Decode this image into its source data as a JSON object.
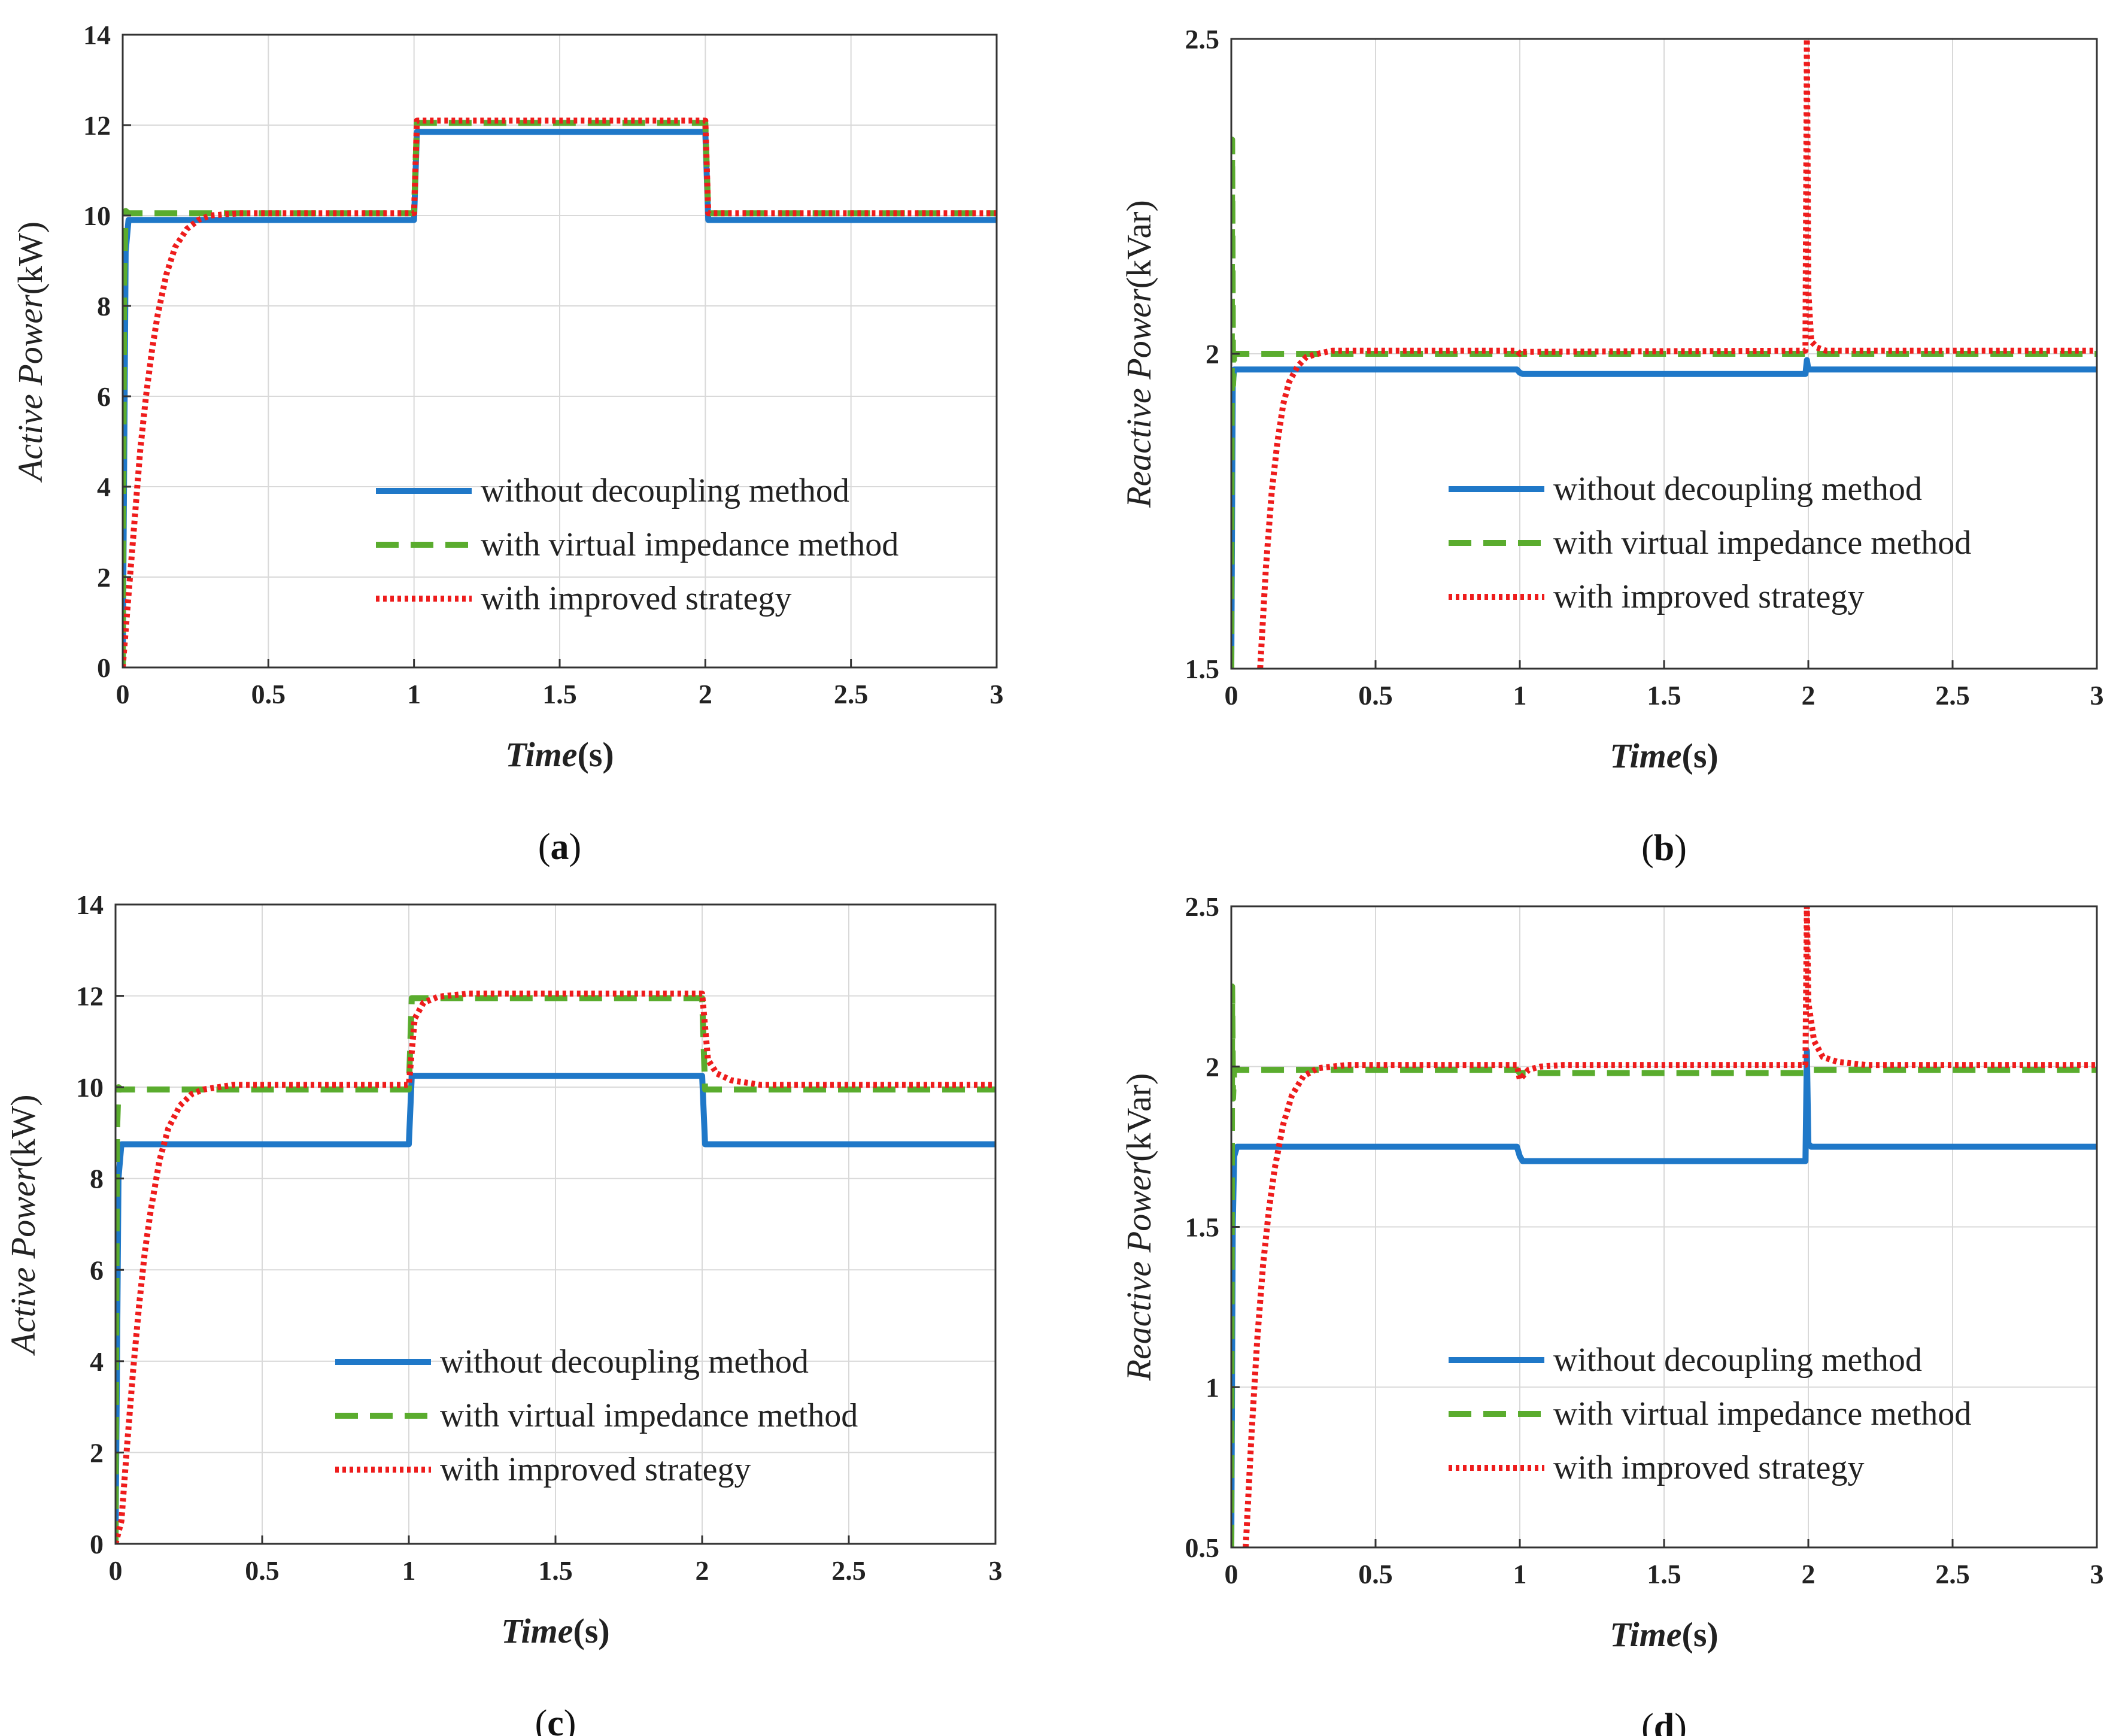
{
  "colors": {
    "without": "#1f78c8",
    "virtual": "#5aac2e",
    "improved": "#ee1c1c",
    "grid": "#d9d9d9",
    "axis": "#333333"
  },
  "chart_data": [
    {
      "id": "a",
      "type": "line",
      "panel_label_open": "(",
      "panel_label": "a",
      "panel_label_close": ")",
      "ylabel_italic": "Active Power",
      "ylabel_unit": "(kW)",
      "xlabel_italic": "Time",
      "xlabel_unit": "(s)",
      "xlim": [
        0,
        3
      ],
      "ylim": [
        0,
        14
      ],
      "xticks": [
        "0",
        "0.5",
        "1",
        "1.5",
        "2",
        "2.5",
        "3"
      ],
      "yticks": [
        "0",
        "2",
        "4",
        "6",
        "8",
        "10",
        "12",
        "14"
      ],
      "grid": true,
      "legend_position": "bottom-right",
      "series": [
        {
          "name": "without decoupling method",
          "style": "solid",
          "color_key": "without",
          "x": [
            0,
            0.01,
            0.02,
            0.99,
            1.0,
            1.01,
            1.99,
            2.0,
            2.01,
            3.0
          ],
          "y": [
            0,
            9.2,
            9.9,
            9.9,
            9.9,
            11.85,
            11.85,
            11.85,
            9.9,
            9.9
          ]
        },
        {
          "name": "with virtual impedance method",
          "style": "dashed",
          "color_key": "virtual",
          "x": [
            0,
            0.005,
            0.01,
            0.02,
            0.99,
            1.0,
            1.01,
            1.99,
            2.0,
            2.01,
            3.0
          ],
          "y": [
            0,
            8.5,
            10.1,
            10.05,
            10.05,
            10.05,
            12.05,
            12.05,
            12.05,
            10.05,
            10.05
          ]
        },
        {
          "name": "with improved strategy",
          "style": "dotted",
          "color_key": "improved",
          "x": [
            0,
            0.02,
            0.04,
            0.06,
            0.08,
            0.1,
            0.12,
            0.15,
            0.18,
            0.22,
            0.26,
            0.3,
            0.4,
            0.99,
            1.0,
            1.01,
            1.99,
            2.0,
            2.01,
            3.0
          ],
          "y": [
            0,
            1.6,
            3.2,
            4.8,
            6.0,
            7.0,
            7.8,
            8.7,
            9.3,
            9.7,
            9.9,
            10.0,
            10.05,
            10.05,
            10.05,
            12.1,
            12.1,
            12.1,
            10.05,
            10.05
          ]
        }
      ]
    },
    {
      "id": "b",
      "type": "line",
      "panel_label_open": "(",
      "panel_label": "b",
      "panel_label_close": ")",
      "ylabel_italic": "Reactive Power",
      "ylabel_unit": "(kVar)",
      "xlabel_italic": "Time",
      "xlabel_unit": "(s)",
      "xlim": [
        0,
        3
      ],
      "ylim": [
        1.5,
        2.5
      ],
      "xticks": [
        "0",
        "0.5",
        "1",
        "1.5",
        "2",
        "2.5",
        "3"
      ],
      "yticks": [
        "1.5",
        "2",
        "2.5"
      ],
      "grid": true,
      "legend_position": "bottom-right",
      "series": [
        {
          "name": "without decoupling method",
          "style": "solid",
          "color_key": "without",
          "x": [
            0,
            0.005,
            0.01,
            0.02,
            0.99,
            1.0,
            1.01,
            1.99,
            1.995,
            2.0,
            2.01,
            3.0
          ],
          "y": [
            1.5,
            1.95,
            1.975,
            1.975,
            1.975,
            1.97,
            1.968,
            1.968,
            1.99,
            1.975,
            1.975,
            1.975
          ]
        },
        {
          "name": "with virtual impedance method",
          "style": "dashed",
          "color_key": "virtual",
          "x": [
            0,
            0.003,
            0.006,
            0.01,
            0.02,
            3.0
          ],
          "y": [
            1.5,
            2.34,
            1.95,
            2.0,
            2.0,
            2.0
          ]
        },
        {
          "name": "with improved strategy",
          "style": "dotted",
          "color_key": "improved",
          "x": [
            0.1,
            0.12,
            0.14,
            0.16,
            0.18,
            0.2,
            0.23,
            0.26,
            0.3,
            0.35,
            0.4,
            0.99,
            1.0,
            1.01,
            1.99,
            1.995,
            2.0,
            2.01,
            2.03,
            2.06,
            3.0
          ],
          "y": [
            1.5,
            1.66,
            1.78,
            1.86,
            1.92,
            1.955,
            1.98,
            1.995,
            2.0,
            2.005,
            2.005,
            2.005,
            2.0,
            2.003,
            2.005,
            2.5,
            2.1,
            2.02,
            2.01,
            2.005,
            2.005
          ]
        }
      ]
    },
    {
      "id": "c",
      "type": "line",
      "panel_label_open": "(",
      "panel_label": "c",
      "panel_label_close": ")",
      "ylabel_italic": "Active Power",
      "ylabel_unit": "(kW)",
      "xlabel_italic": "Time",
      "xlabel_unit": "(s)",
      "xlim": [
        0,
        3
      ],
      "ylim": [
        0,
        14
      ],
      "xticks": [
        "0",
        "0.5",
        "1",
        "1.5",
        "2",
        "2.5",
        "3"
      ],
      "yticks": [
        "0",
        "2",
        "4",
        "6",
        "8",
        "10",
        "12",
        "14"
      ],
      "grid": true,
      "legend_position": "bottom-right",
      "series": [
        {
          "name": "without decoupling method",
          "style": "solid",
          "color_key": "without",
          "x": [
            0,
            0.01,
            0.02,
            0.99,
            1.0,
            1.01,
            1.99,
            2.0,
            2.01,
            3.0
          ],
          "y": [
            0,
            8.0,
            8.75,
            8.75,
            8.75,
            10.25,
            10.25,
            10.25,
            8.75,
            8.75
          ]
        },
        {
          "name": "with virtual impedance method",
          "style": "dashed",
          "color_key": "virtual",
          "x": [
            0,
            0.005,
            0.01,
            0.02,
            0.99,
            1.0,
            1.01,
            1.99,
            2.0,
            2.01,
            3.0
          ],
          "y": [
            0,
            9.0,
            10.0,
            9.95,
            9.95,
            9.95,
            11.95,
            11.95,
            11.95,
            9.95,
            9.95
          ]
        },
        {
          "name": "with improved strategy",
          "style": "dotted",
          "color_key": "improved",
          "x": [
            0,
            0.02,
            0.04,
            0.06,
            0.08,
            0.1,
            0.12,
            0.15,
            0.18,
            0.22,
            0.26,
            0.3,
            0.4,
            0.99,
            1.0,
            1.02,
            1.05,
            1.1,
            1.2,
            1.99,
            2.0,
            2.02,
            2.05,
            2.1,
            2.2,
            3.0
          ],
          "y": [
            0,
            0.5,
            2.2,
            3.8,
            5.2,
            6.4,
            7.3,
            8.4,
            9.1,
            9.6,
            9.85,
            9.95,
            10.05,
            10.05,
            10.05,
            11.5,
            11.85,
            11.98,
            12.05,
            12.05,
            12.05,
            10.6,
            10.3,
            10.15,
            10.05,
            10.05
          ]
        }
      ]
    },
    {
      "id": "d",
      "type": "line",
      "panel_label_open": "(",
      "panel_label": "d",
      "panel_label_close": ")",
      "ylabel_italic": "Reactive Power",
      "ylabel_unit": "(kVar)",
      "xlabel_italic": "Time",
      "xlabel_unit": "(s)",
      "xlim": [
        0,
        3
      ],
      "ylim": [
        0.5,
        2.5
      ],
      "xticks": [
        "0",
        "0.5",
        "1",
        "1.5",
        "2",
        "2.5",
        "3"
      ],
      "yticks": [
        "0.5",
        "1",
        "1.5",
        "2",
        "2.5"
      ],
      "grid": true,
      "legend_position": "bottom-right",
      "series": [
        {
          "name": "without decoupling method",
          "style": "solid",
          "color_key": "without",
          "x": [
            0,
            0.005,
            0.01,
            0.02,
            0.99,
            1.0,
            1.01,
            1.99,
            1.995,
            2.0,
            2.01,
            3.0
          ],
          "y": [
            0.5,
            1.5,
            1.72,
            1.75,
            1.75,
            1.72,
            1.705,
            1.705,
            2.05,
            1.76,
            1.75,
            1.75
          ]
        },
        {
          "name": "with virtual impedance method",
          "style": "dashed",
          "color_key": "virtual",
          "x": [
            0,
            0.003,
            0.006,
            0.01,
            0.02,
            0.99,
            1.0,
            1.01,
            1.99,
            2.0,
            2.01,
            3.0
          ],
          "y": [
            0.5,
            2.25,
            1.9,
            1.99,
            1.99,
            1.99,
            1.98,
            1.98,
            1.98,
            1.99,
            1.99,
            1.99
          ]
        },
        {
          "name": "with improved strategy",
          "style": "dotted",
          "color_key": "improved",
          "x": [
            0.05,
            0.07,
            0.09,
            0.11,
            0.13,
            0.15,
            0.18,
            0.21,
            0.25,
            0.3,
            0.35,
            0.4,
            0.99,
            1.0,
            1.03,
            1.07,
            1.15,
            1.99,
            1.995,
            2.0,
            2.02,
            2.05,
            2.1,
            2.2,
            3.0
          ],
          "y": [
            0.5,
            0.85,
            1.15,
            1.38,
            1.55,
            1.68,
            1.82,
            1.91,
            1.97,
            1.995,
            2.0,
            2.005,
            2.005,
            1.96,
            1.99,
            2.0,
            2.005,
            2.005,
            2.5,
            2.2,
            2.08,
            2.03,
            2.015,
            2.005,
            2.005
          ]
        }
      ]
    }
  ]
}
